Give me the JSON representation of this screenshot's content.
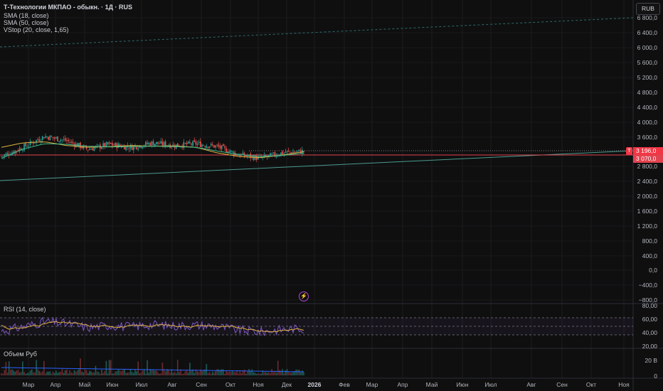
{
  "header": {
    "title": "Т-Технологии МКПАО - обыкн. · 1Д · RUS",
    "currency": "RUB"
  },
  "indicators": [
    {
      "label": "SMA (18, close)",
      "color": "#e0b341"
    },
    {
      "label": "SMA (50, close)",
      "color": "#3fb98a"
    },
    {
      "label": "VStop (20, close, 1,65)",
      "color": "#e84b5c"
    }
  ],
  "price_scale": [
    "6 800,0",
    "6 400,0",
    "6 000,0",
    "5 600,0",
    "5 200,0",
    "4 800,0",
    "4 400,0",
    "4 000,0",
    "3 600,0",
    "2 800,0",
    "2 400,0",
    "2 000,0",
    "1 600,0",
    "1 200,0",
    "800,0",
    "400,0",
    "0,0",
    "−400,0",
    "−800,0"
  ],
  "price_tags": {
    "last": "3 196,0",
    "stop": "3 070,0",
    "badge": "T"
  },
  "rsi": {
    "label": "RSI (14, close)",
    "scale": [
      "80,00",
      "60,00",
      "40,00",
      "20,00"
    ]
  },
  "volume": {
    "label": "Объем Руб",
    "scale": [
      "20 B",
      "0"
    ]
  },
  "time_axis": [
    "Мар",
    "Апр",
    "Май",
    "Июн",
    "Июл",
    "Авг",
    "Сен",
    "Окт",
    "Ноя",
    "Дек",
    "2026",
    "Фев",
    "Мар",
    "Апр",
    "Май",
    "Июн",
    "Июл",
    "Авг",
    "Сен",
    "Окт",
    "Ноя"
  ],
  "colors": {
    "up": "#26a69a",
    "down": "#ef5350",
    "background": "#0f0f0f",
    "rsi_line": "#7e57c2",
    "rsi_sma": "#e0b341"
  },
  "chart_data": {
    "type": "candlestick",
    "ylim": [
      -900,
      6900
    ],
    "series": [
      {
        "name": "SMA (18, close)",
        "values": [
          3300,
          3420,
          3450,
          3350,
          3300,
          3320,
          3350,
          3330,
          3340,
          3300,
          3150,
          3050,
          3020,
          3090,
          3180
        ]
      },
      {
        "name": "SMA (50, close)",
        "values": [
          3000,
          3250,
          3400,
          3380,
          3330,
          3310,
          3320,
          3330,
          3320,
          3300,
          3200,
          3100,
          3050,
          3080,
          3140
        ]
      }
    ],
    "close_path": [
      3050,
      3300,
      3600,
      3480,
      3250,
      3380,
      3300,
      3420,
      3350,
      3400,
      3320,
      3100,
      3000,
      3150,
      3196
    ],
    "rsi_ylim": [
      20,
      80
    ],
    "volume_ylim": [
      0,
      28
    ]
  }
}
